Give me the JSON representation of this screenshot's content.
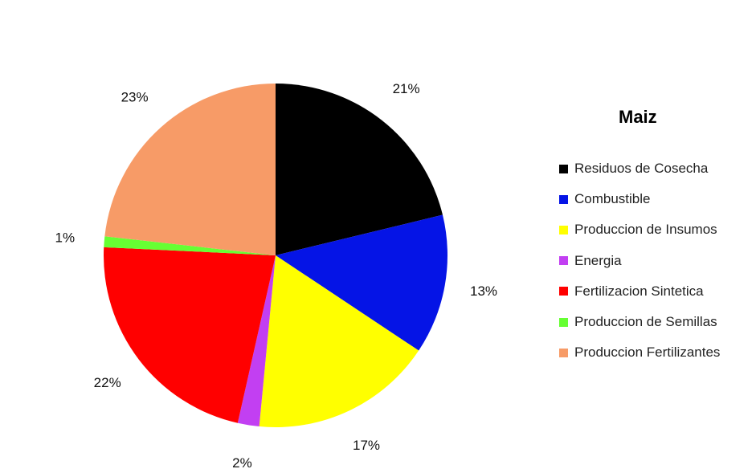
{
  "chart_data": {
    "type": "pie",
    "title": "Maiz",
    "slices": [
      {
        "label": "Residuos de Cosecha",
        "value": 21,
        "display": "21%",
        "color": "#000000"
      },
      {
        "label": "Combustible",
        "value": 13,
        "display": "13%",
        "color": "#0514e6"
      },
      {
        "label": "Produccion de Insumos",
        "value": 17,
        "display": "17%",
        "color": "#ffff00"
      },
      {
        "label": "Energia",
        "value": 2,
        "display": "2%",
        "color": "#c23ff2"
      },
      {
        "label": "Fertilizacion Sintetica",
        "value": 22,
        "display": "22%",
        "color": "#ff0000"
      },
      {
        "label": "Produccion de Semillas",
        "value": 1,
        "display": "1%",
        "color": "#66ff33"
      },
      {
        "label": "Produccion Fertilizantes",
        "value": 23,
        "display": "23%",
        "color": "#f79b67"
      }
    ],
    "legend_position": "right"
  }
}
